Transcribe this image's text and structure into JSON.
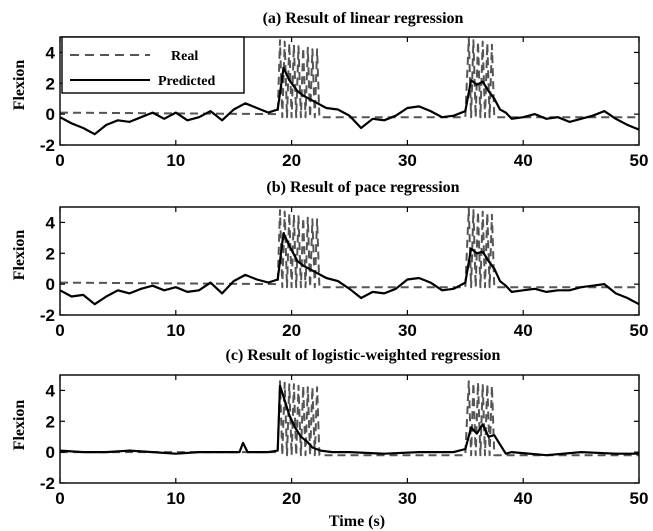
{
  "chart_data": [
    {
      "type": "line",
      "title": "(a) Result of linear regression",
      "ylabel": "Flexion",
      "xlabel": "",
      "xlim": [
        0,
        50
      ],
      "ylim": [
        -2,
        5
      ],
      "xticks": [
        "0",
        "10",
        "20",
        "30",
        "40",
        "50"
      ],
      "yticks": [
        "4",
        "2",
        "0",
        "-2"
      ],
      "legend": {
        "position": "top-left",
        "entries": [
          "Real",
          "Predicted"
        ]
      },
      "series": [
        {
          "name": "Real",
          "style": "dashed",
          "color": "#555555",
          "x": [
            0,
            18.8,
            19.0,
            19.2,
            19.4,
            19.6,
            19.8,
            20.0,
            20.2,
            20.4,
            20.6,
            20.8,
            21.0,
            21.2,
            21.4,
            21.6,
            21.8,
            22.0,
            22.2,
            22.4,
            35.0,
            35.3,
            35.5,
            35.7,
            35.9,
            36.1,
            36.3,
            36.5,
            36.7,
            36.9,
            37.1,
            37.3,
            37.5,
            37.8,
            50
          ],
          "y": [
            0.1,
            0.0,
            4.8,
            -0.2,
            4.7,
            -0.2,
            4.6,
            -0.2,
            4.5,
            -0.2,
            4.4,
            -0.2,
            4.3,
            -0.2,
            4.3,
            -0.2,
            4.2,
            -0.2,
            4.2,
            -0.2,
            -0.2,
            4.9,
            -0.2,
            4.8,
            -0.2,
            4.7,
            -0.2,
            4.7,
            -0.2,
            4.6,
            -0.2,
            4.5,
            -0.2,
            -0.2,
            -0.2
          ]
        },
        {
          "name": "Predicted",
          "style": "solid",
          "color": "#000000",
          "x": [
            0,
            1,
            2,
            3,
            4,
            5,
            6,
            7,
            8,
            9,
            10,
            11,
            12,
            13,
            14,
            15,
            16,
            17,
            18,
            18.8,
            19.3,
            19.8,
            20.5,
            21.0,
            21.5,
            22.0,
            23.0,
            24.0,
            25.0,
            26.0,
            27.0,
            28.0,
            29.0,
            30.0,
            31.0,
            32.0,
            33.0,
            34.0,
            35.0,
            35.5,
            36.0,
            36.5,
            37.0,
            37.5,
            38.0,
            38.5,
            39.0,
            40.0,
            41.0,
            42.0,
            43.0,
            44.0,
            45.0,
            46.0,
            47.0,
            48.0,
            49.0,
            50.0
          ],
          "y": [
            -0.2,
            -0.6,
            -0.9,
            -1.3,
            -0.7,
            -0.4,
            -0.5,
            -0.2,
            0.1,
            -0.3,
            0.1,
            -0.4,
            -0.2,
            0.2,
            -0.4,
            0.3,
            0.7,
            0.4,
            0.1,
            0.3,
            3.0,
            2.2,
            1.5,
            1.2,
            1.0,
            0.8,
            0.4,
            0.3,
            -0.1,
            -0.9,
            -0.3,
            -0.4,
            -0.1,
            0.4,
            0.5,
            0.2,
            -0.2,
            -0.1,
            0.2,
            2.2,
            1.9,
            2.1,
            1.5,
            1.0,
            0.3,
            0.1,
            -0.3,
            -0.2,
            0.0,
            -0.3,
            -0.2,
            -0.5,
            -0.3,
            -0.1,
            0.2,
            -0.3,
            -0.7,
            -1.0
          ]
        }
      ]
    },
    {
      "type": "line",
      "title": "(b) Result of pace regression",
      "ylabel": "Flexion",
      "xlabel": "",
      "xlim": [
        0,
        50
      ],
      "ylim": [
        -2,
        5
      ],
      "xticks": [
        "0",
        "10",
        "20",
        "30",
        "40",
        "50"
      ],
      "yticks": [
        "4",
        "2",
        "0",
        "-2"
      ],
      "series": [
        {
          "name": "Real",
          "style": "dashed",
          "color": "#555555",
          "x": [
            0,
            18.8,
            19.0,
            19.2,
            19.4,
            19.6,
            19.8,
            20.0,
            20.2,
            20.4,
            20.6,
            20.8,
            21.0,
            21.2,
            21.4,
            21.6,
            21.8,
            22.0,
            22.2,
            22.4,
            35.0,
            35.3,
            35.5,
            35.7,
            35.9,
            36.1,
            36.3,
            36.5,
            36.7,
            36.9,
            37.1,
            37.3,
            37.5,
            37.8,
            50
          ],
          "y": [
            0.1,
            0.0,
            4.8,
            -0.2,
            4.7,
            -0.2,
            4.6,
            -0.2,
            4.5,
            -0.2,
            4.4,
            -0.2,
            4.3,
            -0.2,
            4.3,
            -0.2,
            4.2,
            -0.2,
            4.2,
            -0.2,
            -0.2,
            4.9,
            -0.2,
            4.8,
            -0.2,
            4.7,
            -0.2,
            4.7,
            -0.2,
            4.6,
            -0.2,
            4.5,
            -0.2,
            -0.2,
            -0.2
          ]
        },
        {
          "name": "Predicted",
          "style": "solid",
          "color": "#000000",
          "x": [
            0,
            1,
            2,
            3,
            4,
            5,
            6,
            7,
            8,
            9,
            10,
            11,
            12,
            13,
            14,
            15,
            16,
            17,
            18,
            18.8,
            19.3,
            19.8,
            20.5,
            21.0,
            21.5,
            22.0,
            23.0,
            24.0,
            25.0,
            26.0,
            27.0,
            28.0,
            29.0,
            30.0,
            31.0,
            32.0,
            33.0,
            34.0,
            35.0,
            35.5,
            36.0,
            36.5,
            37.0,
            37.5,
            38.0,
            38.5,
            39.0,
            40.0,
            41.0,
            42.0,
            43.0,
            44.0,
            45.0,
            46.0,
            47.0,
            48.0,
            49.0,
            50.0
          ],
          "y": [
            -0.4,
            -0.8,
            -0.7,
            -1.3,
            -0.8,
            -0.4,
            -0.6,
            -0.3,
            -0.1,
            -0.4,
            -0.2,
            -0.5,
            -0.4,
            0.1,
            -0.6,
            0.2,
            0.6,
            0.3,
            0.1,
            0.3,
            3.3,
            2.5,
            1.5,
            1.2,
            1.0,
            0.8,
            0.4,
            0.2,
            -0.3,
            -0.9,
            -0.5,
            -0.6,
            -0.3,
            0.3,
            0.4,
            0.1,
            -0.4,
            -0.3,
            0.1,
            2.3,
            2.0,
            2.1,
            1.5,
            1.0,
            0.2,
            -0.1,
            -0.5,
            -0.4,
            -0.3,
            -0.5,
            -0.4,
            -0.4,
            -0.2,
            -0.1,
            0.0,
            -0.6,
            -0.9,
            -1.3
          ]
        }
      ]
    },
    {
      "type": "line",
      "title": "(c) Result of logistic-weighted regression",
      "ylabel": "Flexion",
      "xlabel": "Time (s)",
      "xlim": [
        0,
        50
      ],
      "ylim": [
        -2,
        5
      ],
      "xticks": [
        "0",
        "10",
        "20",
        "30",
        "40",
        "50"
      ],
      "yticks": [
        "4",
        "2",
        "0",
        "-2"
      ],
      "series": [
        {
          "name": "Real",
          "style": "dashed",
          "color": "#555555",
          "x": [
            0,
            18.8,
            19.0,
            19.2,
            19.4,
            19.6,
            19.8,
            20.0,
            20.2,
            20.4,
            20.6,
            20.8,
            21.0,
            21.2,
            21.4,
            21.6,
            21.8,
            22.0,
            22.2,
            22.4,
            35.0,
            35.3,
            35.5,
            35.7,
            35.9,
            36.1,
            36.3,
            36.5,
            36.7,
            36.9,
            37.1,
            37.3,
            37.5,
            37.8,
            50
          ],
          "y": [
            0.0,
            0.0,
            4.6,
            -0.2,
            4.5,
            -0.2,
            4.4,
            -0.2,
            4.4,
            -0.2,
            4.3,
            -0.2,
            4.3,
            -0.2,
            4.2,
            -0.2,
            4.2,
            -0.2,
            4.2,
            -0.2,
            -0.2,
            4.6,
            -0.2,
            4.5,
            -0.2,
            4.5,
            -0.2,
            4.4,
            -0.2,
            4.4,
            -0.2,
            4.3,
            -0.2,
            -0.2,
            -0.2
          ]
        },
        {
          "name": "Predicted",
          "style": "solid",
          "color": "#000000",
          "x": [
            0,
            2,
            4,
            6,
            8,
            10,
            12,
            14,
            15.5,
            15.8,
            16.2,
            18.0,
            18.8,
            19.0,
            19.3,
            19.8,
            20.3,
            20.8,
            21.3,
            21.8,
            22.5,
            23.5,
            25.0,
            28.0,
            31.0,
            34.0,
            35.0,
            35.5,
            36.0,
            36.5,
            37.0,
            37.5,
            38.0,
            38.5,
            39.0,
            42.0,
            45.0,
            48.0,
            50.0
          ],
          "y": [
            0.1,
            0.0,
            0.0,
            0.1,
            0.0,
            -0.1,
            0.0,
            0.0,
            0.0,
            0.6,
            0.0,
            0.0,
            0.1,
            4.3,
            3.6,
            2.4,
            1.6,
            1.0,
            0.7,
            0.3,
            0.1,
            0.0,
            0.0,
            -0.1,
            0.0,
            0.0,
            0.2,
            1.6,
            1.2,
            1.8,
            1.0,
            1.1,
            0.5,
            -0.1,
            0.0,
            -0.2,
            0.0,
            -0.1,
            -0.1
          ]
        }
      ]
    }
  ]
}
